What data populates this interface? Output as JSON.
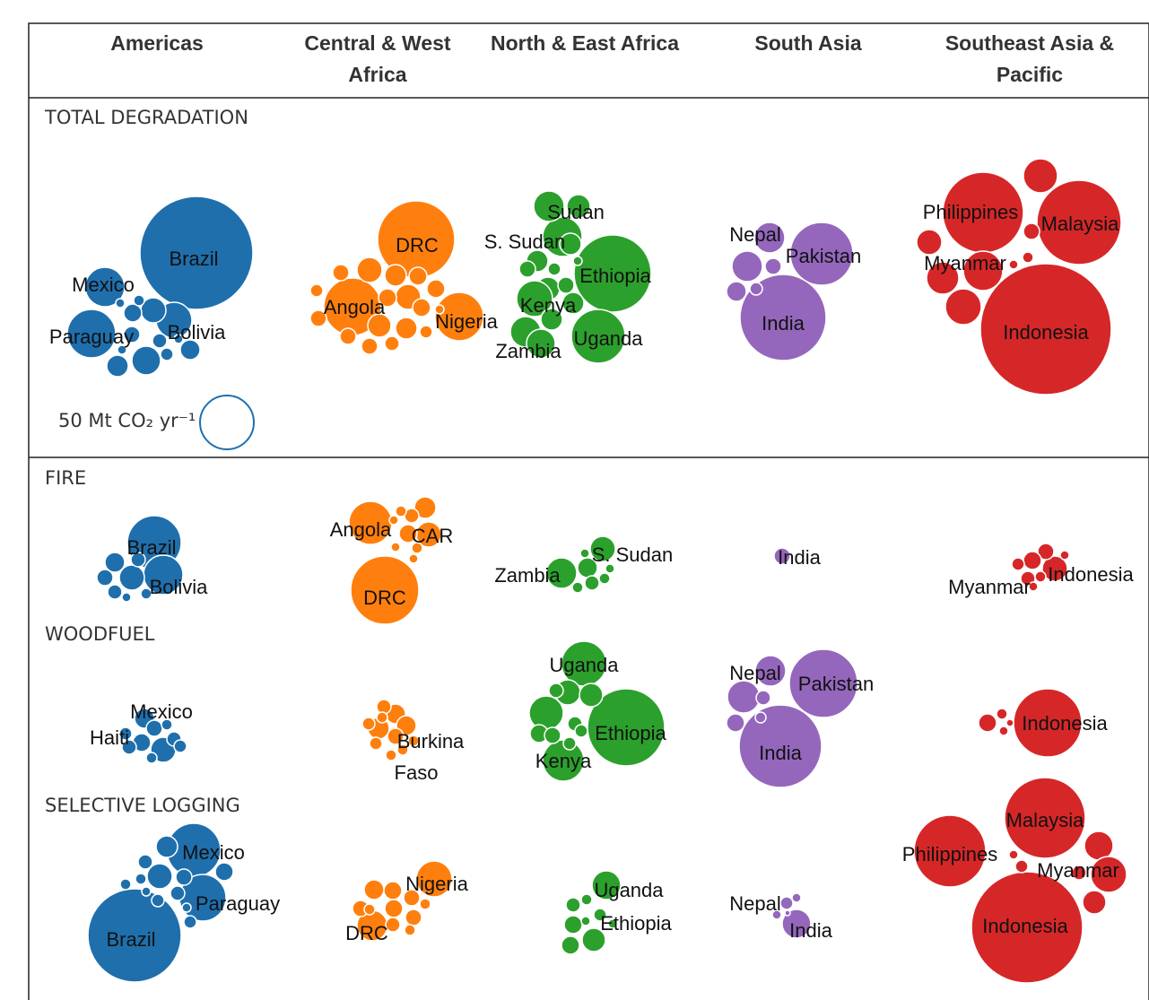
{
  "chart_data": {
    "type": "packed-bubble",
    "regions": [
      {
        "name": "Americas",
        "color": "#1f6fad"
      },
      {
        "name": "Central & West Africa",
        "color": "#ff7f0e"
      },
      {
        "name": "North & East Africa",
        "color": "#2ca02c"
      },
      {
        "name": "South Asia",
        "color": "#9467bd"
      },
      {
        "name": "Southeast Asia & Pacific",
        "color": "#d62728"
      }
    ],
    "column_headers": [
      [
        "Americas"
      ],
      [
        "Central & West",
        "Africa"
      ],
      [
        "North & East Africa"
      ],
      [
        "South Asia"
      ],
      [
        "Southeast Asia &",
        "Pacific"
      ]
    ],
    "sections": [
      {
        "title": "TOTAL DEGRADATION",
        "labeled_countries": [
          [
            "Brazil",
            "Mexico",
            "Paraguay",
            "Bolivia"
          ],
          [
            "DRC",
            "Angola",
            "Nigeria"
          ],
          [
            "Sudan",
            "S. Sudan",
            "Ethiopia",
            "Kenya",
            "Uganda",
            "Zambia"
          ],
          [
            "Nepal",
            "Pakistan",
            "India"
          ],
          [
            "Philippines",
            "Malaysia",
            "Myanmar",
            "Indonesia"
          ]
        ]
      },
      {
        "title": "FIRE",
        "labeled_countries": [
          [
            "Brazil",
            "Bolivia"
          ],
          [
            "Angola",
            "CAR",
            "DRC"
          ],
          [
            "S. Sudan",
            "Zambia"
          ],
          [
            "India"
          ],
          [
            "Myanmar",
            "Indonesia"
          ]
        ]
      },
      {
        "title": "WOODFUEL",
        "labeled_countries": [
          [
            "Mexico",
            "Haiti"
          ],
          [
            "Burkina",
            "Faso"
          ],
          [
            "Uganda",
            "Ethiopia",
            "Kenya"
          ],
          [
            "Nepal",
            "Pakistan",
            "India"
          ],
          [
            "Indonesia"
          ]
        ]
      },
      {
        "title": "SELECTIVE LOGGING",
        "labeled_countries": [
          [
            "Mexico",
            "Paraguay",
            "Brazil"
          ],
          [
            "Nigeria",
            "DRC"
          ],
          [
            "Uganda",
            "Ethiopia"
          ],
          [
            "Nepal",
            "India"
          ],
          [
            "Malaysia",
            "Philippines",
            "Myanmar",
            "Indonesia"
          ]
        ]
      }
    ],
    "legend": {
      "label": "50 Mt CO₂ yr⁻¹",
      "value_mt_co2_per_yr": 50
    }
  }
}
